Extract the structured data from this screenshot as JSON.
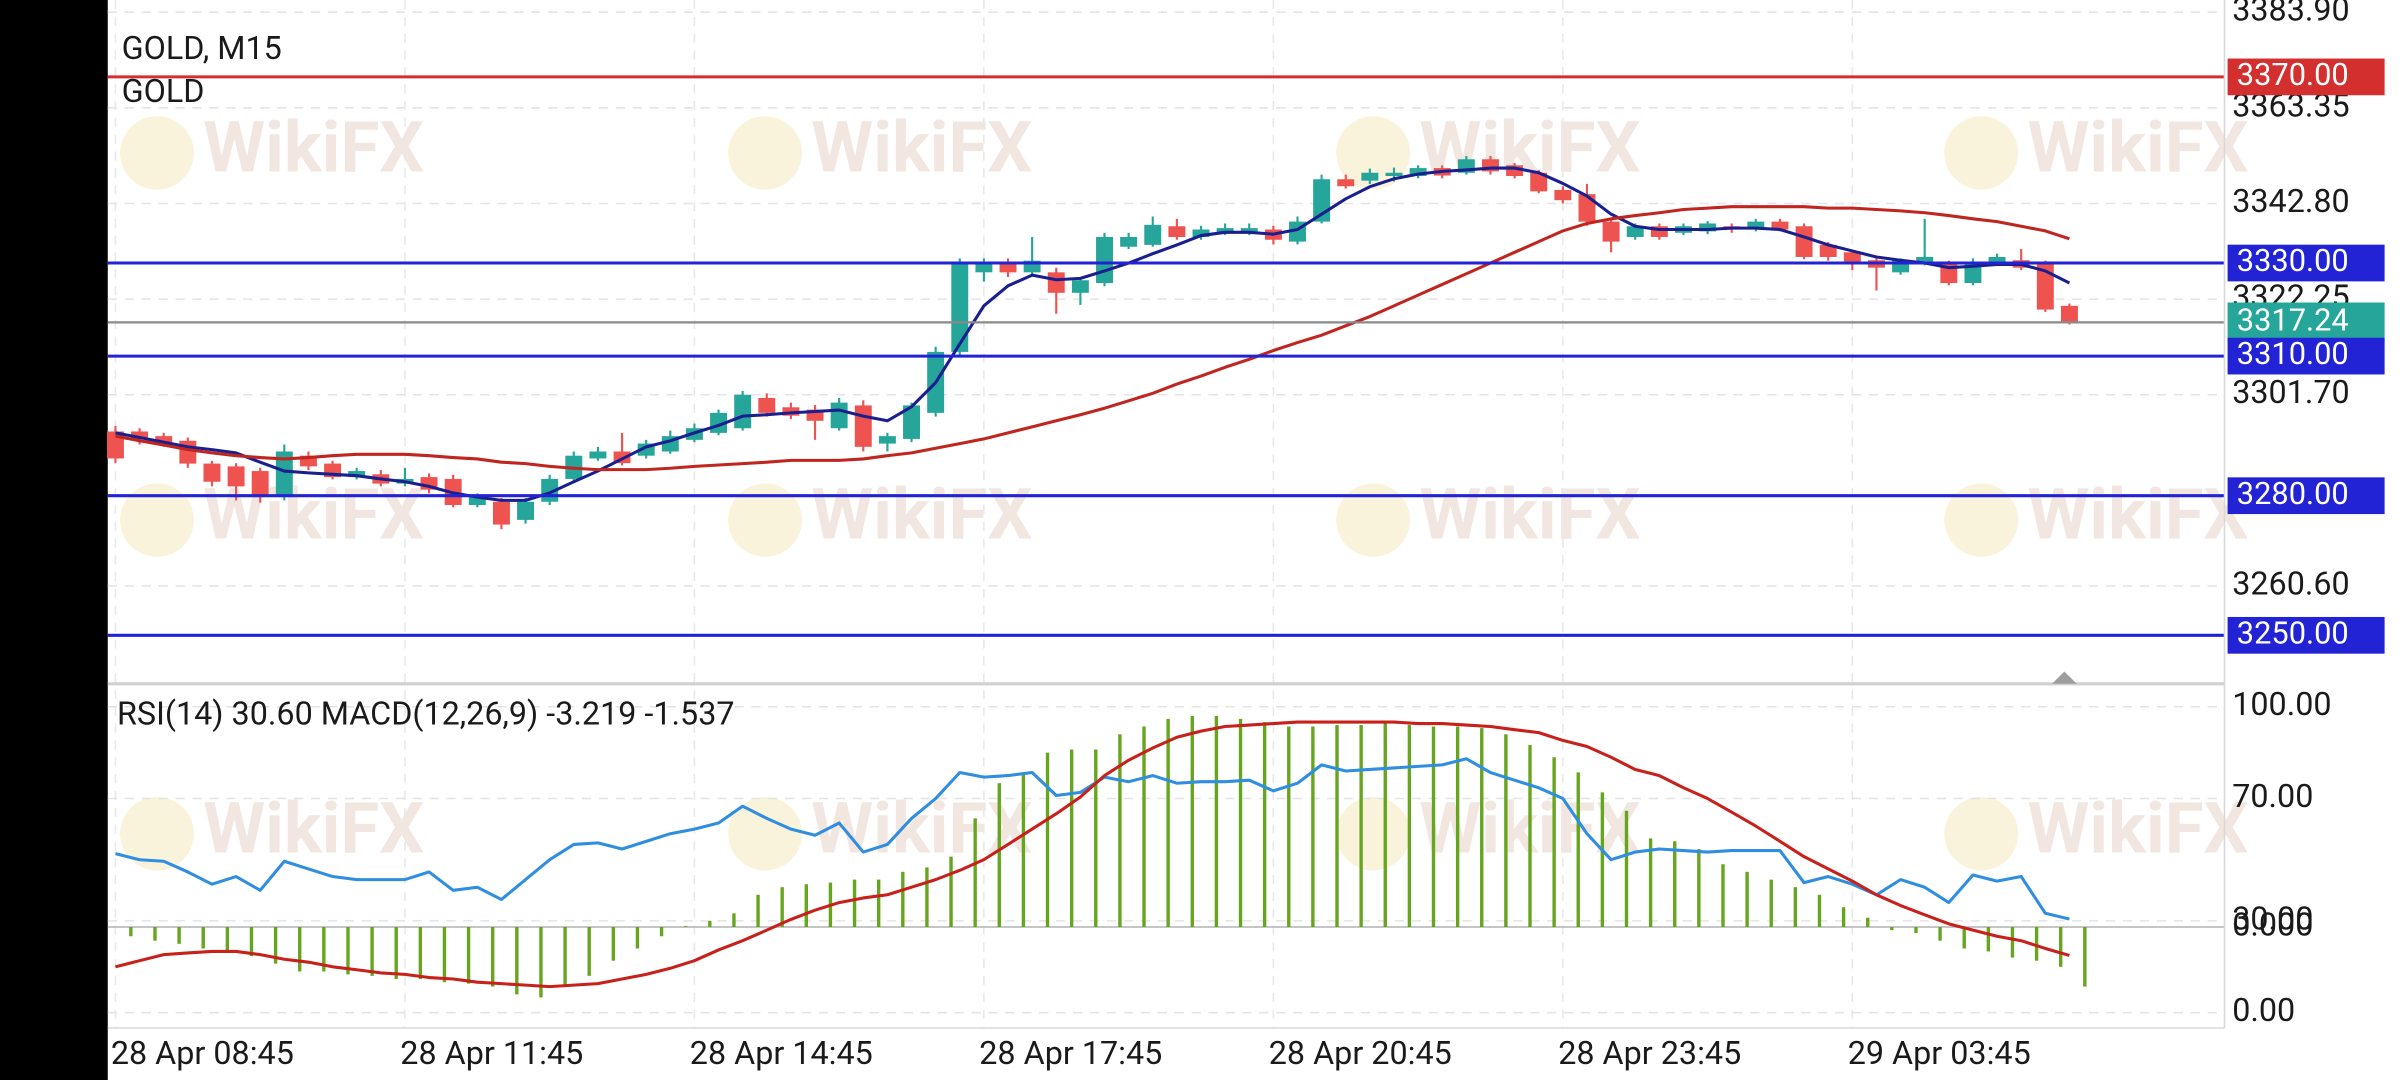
{
  "chart_data": [
    {
      "type": "candlestick",
      "title": "GOLD, M15",
      "subtitle": "GOLD",
      "categories": [
        "28 Apr 08:45",
        null,
        null,
        null,
        null,
        null,
        null,
        null,
        null,
        null,
        null,
        null,
        "28 Apr 11:45",
        null,
        null,
        null,
        null,
        null,
        null,
        null,
        null,
        null,
        null,
        null,
        "28 Apr 14:45",
        null,
        null,
        null,
        null,
        null,
        null,
        null,
        null,
        null,
        null,
        null,
        "28 Apr 17:45",
        null,
        null,
        null,
        null,
        null,
        null,
        null,
        null,
        null,
        null,
        null,
        "28 Apr 20:45",
        null,
        null,
        null,
        null,
        null,
        null,
        null,
        null,
        null,
        null,
        null,
        "28 Apr 23:45",
        null,
        null,
        null,
        null,
        null,
        null,
        null,
        null,
        null,
        null,
        null,
        "29 Apr 03:45",
        null,
        null,
        null,
        null,
        null,
        null,
        null,
        null,
        null
      ],
      "open": [
        3293.8,
        3293.8,
        3292.8,
        3291.8,
        3286.9,
        3286.3,
        3285.3,
        3279.7,
        3288.6,
        3286.9,
        3284,
        3284.6,
        3282.6,
        3284,
        3283.6,
        3278,
        3278.7,
        3274.8,
        3278.7,
        3283.6,
        3288,
        3289.5,
        3288.6,
        3289.5,
        3292,
        3293.5,
        3294.5,
        3301,
        3299,
        3298.5,
        3294.5,
        3299.4,
        3291.2,
        3292.2,
        3297.8,
        3310.9,
        3328,
        3330,
        3328,
        3328,
        3323.6,
        3325.7,
        3333.5,
        3333.9,
        3337.9,
        3335.6,
        3336.5,
        3336.8,
        3337.2,
        3334.6,
        3338.9,
        3348,
        3347.7,
        3348.7,
        3348.7,
        3350.4,
        3349.4,
        3352.3,
        3351,
        3349.4,
        3345.7,
        3344.8,
        3338.9,
        3335.6,
        3337.9,
        3336.5,
        3336.8,
        3337.9,
        3337.2,
        3338.9,
        3337.9,
        3333.9,
        3332.3,
        3330.6,
        3328,
        3330,
        3330,
        3325.7,
        3330,
        3330.6,
        3330,
        3320.8
      ],
      "high": [
        3295,
        3294.5,
        3293.5,
        3292.5,
        3287.5,
        3287,
        3286,
        3291,
        3289.5,
        3287.5,
        3286,
        3285.5,
        3286,
        3284.8,
        3284.5,
        3280.5,
        3279.5,
        3279.5,
        3284.5,
        3289.5,
        3290.5,
        3293.5,
        3292,
        3294,
        3295.5,
        3298.5,
        3302.5,
        3302,
        3300,
        3299.5,
        3301,
        3300.5,
        3293.5,
        3300,
        3312,
        3331,
        3331,
        3331,
        3335.6,
        3329,
        3327,
        3336.5,
        3336.5,
        3340,
        3339.5,
        3338,
        3338.5,
        3338.5,
        3338,
        3340,
        3349,
        3349,
        3350.3,
        3350.5,
        3351,
        3351,
        3353,
        3353,
        3351.5,
        3350,
        3346.5,
        3347,
        3339.5,
        3338.5,
        3338.5,
        3338.5,
        3339,
        3338.5,
        3339.5,
        3339.5,
        3338.5,
        3334.5,
        3332.8,
        3331,
        3331,
        3339.5,
        3330.5,
        3331,
        3332,
        3333,
        3330.5,
        3321.3
      ],
      "low": [
        3287,
        3291,
        3290.5,
        3286,
        3282,
        3279,
        3278.5,
        3279,
        3285.5,
        3283.5,
        3283.5,
        3282,
        3282,
        3280.5,
        3277.5,
        3277.5,
        3272.8,
        3274,
        3278,
        3283,
        3287.5,
        3286.5,
        3288,
        3289,
        3291.5,
        3293,
        3294,
        3297,
        3296.5,
        3292,
        3294,
        3289.5,
        3289.5,
        3291.5,
        3297,
        3310,
        3326,
        3327,
        3327.5,
        3319.1,
        3321,
        3325,
        3333,
        3333.5,
        3335,
        3335,
        3336,
        3336,
        3334,
        3334,
        3338.5,
        3346,
        3347,
        3347.5,
        3348.2,
        3348.2,
        3349,
        3349,
        3348.2,
        3345,
        3342.8,
        3338,
        3332.3,
        3335,
        3335,
        3336,
        3336.2,
        3336.5,
        3336.8,
        3336.8,
        3330.8,
        3330.5,
        3328.5,
        3324.1,
        3327.5,
        3329.5,
        3325.2,
        3325.2,
        3329.5,
        3328.5,
        3319.5,
        3316.8
      ],
      "close": [
        3288,
        3292.2,
        3291.2,
        3286.9,
        3283,
        3282,
        3279.7,
        3289.5,
        3286.3,
        3284,
        3285.3,
        3282.6,
        3283.6,
        3281.3,
        3278,
        3279.7,
        3273.8,
        3278.7,
        3283.6,
        3288.6,
        3289.5,
        3287,
        3291.2,
        3292.8,
        3294.5,
        3297.8,
        3301.7,
        3297.8,
        3297.2,
        3296.1,
        3300,
        3290.5,
        3292.8,
        3299.4,
        3310.9,
        3330,
        3330,
        3328,
        3330.5,
        3323.6,
        3326.3,
        3335.6,
        3335.6,
        3338.2,
        3335.6,
        3337.2,
        3337.5,
        3337.5,
        3335,
        3338.9,
        3348,
        3346.5,
        3349.4,
        3349.4,
        3350.4,
        3348.8,
        3352.3,
        3349.7,
        3348.7,
        3345.4,
        3343.5,
        3338.9,
        3334.6,
        3337.9,
        3335.6,
        3337.9,
        3338.5,
        3337.2,
        3338.9,
        3337.2,
        3331.3,
        3331.3,
        3330,
        3329,
        3330.6,
        3331.3,
        3325.7,
        3330,
        3331.3,
        3329,
        3320,
        3317.24
      ],
      "up_color": "#26a69a",
      "down_color": "#ef5350",
      "series": [
        {
          "color": "#1a1f8f",
          "values": [
            3293.5,
            3292.5,
            3291.5,
            3290.5,
            3289.9,
            3289.2,
            3287.2,
            3285.3,
            3284.9,
            3284.6,
            3284.3,
            3283.6,
            3283,
            3282,
            3280.6,
            3279.7,
            3279,
            3279,
            3280.6,
            3283,
            3285.3,
            3287.9,
            3290.5,
            3291.8,
            3293.5,
            3295.1,
            3297.1,
            3297.4,
            3297.8,
            3298.1,
            3298.4,
            3297.1,
            3296.1,
            3299.1,
            3304.3,
            3312.6,
            3320.8,
            3325.1,
            3327.4,
            3326.4,
            3326.7,
            3328.3,
            3330,
            3332,
            3333.9,
            3335.9,
            3336.6,
            3336.6,
            3336.2,
            3337.2,
            3340.5,
            3343.8,
            3346.4,
            3348.1,
            3349.1,
            3349.7,
            3350,
            3350.4,
            3350.4,
            3349.4,
            3347.1,
            3344.4,
            3340.5,
            3337.9,
            3337.2,
            3337.2,
            3337.2,
            3337.5,
            3337.5,
            3337.2,
            3335.6,
            3333.9,
            3332.6,
            3331.3,
            3330.6,
            3330,
            3329,
            3329.3,
            3329.7,
            3329.7,
            3328.3,
            3325.7
          ]
        },
        {
          "color": "#c0261f",
          "values": [
            3292.8,
            3291.8,
            3290.9,
            3289.9,
            3289.2,
            3288.6,
            3288.2,
            3287.9,
            3288.2,
            3288.6,
            3288.9,
            3288.9,
            3288.9,
            3288.6,
            3288.2,
            3287.9,
            3287.2,
            3286.9,
            3286.3,
            3285.9,
            3285.6,
            3285.6,
            3285.6,
            3285.9,
            3286.3,
            3286.6,
            3286.9,
            3287.2,
            3287.6,
            3287.6,
            3287.6,
            3287.9,
            3288.6,
            3289.2,
            3290.2,
            3291.2,
            3292.2,
            3293.5,
            3294.8,
            3296.1,
            3297.4,
            3298.8,
            3300.4,
            3302,
            3304,
            3305.7,
            3307.6,
            3309.3,
            3311.2,
            3312.9,
            3314.5,
            3316.5,
            3318.5,
            3320.8,
            3323.1,
            3325.4,
            3327.7,
            3330,
            3332.3,
            3334.6,
            3336.9,
            3338.5,
            3339.5,
            3340.2,
            3340.8,
            3341.5,
            3341.8,
            3342.1,
            3342.1,
            3342.1,
            3342.1,
            3341.8,
            3341.8,
            3341.5,
            3341.2,
            3340.8,
            3340.2,
            3339.5,
            3338.9,
            3337.9,
            3336.9,
            3335.2
          ]
        }
      ],
      "ylim": [
        3240.24,
        3386.52
      ],
      "yticks": [
        {
          "value": 3383.9,
          "label": "3383.90"
        },
        {
          "value": 3363.35,
          "label": "3363.35"
        },
        {
          "value": 3342.8,
          "label": "3342.80"
        },
        {
          "value": 3322.25,
          "label": "3322.25"
        },
        {
          "value": 3301.7,
          "label": "3301.70"
        },
        {
          "value": 3260.6,
          "label": "3260.60"
        }
      ],
      "grid": true,
      "levels": [
        {
          "value": 3370,
          "label": "3370.00",
          "color": "#d32f2f"
        },
        {
          "value": 3330,
          "label": "3330.00",
          "color": "#2323d6"
        },
        {
          "value": 3310,
          "label": "3310.00",
          "color": "#2323d6"
        },
        {
          "value": 3280,
          "label": "3280.00",
          "color": "#2323d6"
        },
        {
          "value": 3250,
          "label": "3250.00",
          "color": "#2323d6"
        }
      ],
      "last_price": {
        "value": 3317.24,
        "label": "3317.24",
        "color": "#26a69a"
      },
      "watermark": "WikiFX"
    },
    {
      "type": "indicator",
      "title": "RSI(14) 30.60 MACD(12,26,9) -3.219 -1.537",
      "series": [
        {
          "type": "line",
          "color": "#2f8ee0",
          "values": [
            52,
            50,
            49.5,
            46,
            42,
            44.5,
            40,
            49.5,
            47,
            44.5,
            43.5,
            43.5,
            43.5,
            46,
            40,
            41,
            37,
            43.5,
            50,
            55,
            55.5,
            53.5,
            56,
            58.5,
            60,
            62,
            67.5,
            63.5,
            60,
            58,
            62,
            52.5,
            55,
            63.5,
            70,
            78.5,
            77,
            77.5,
            78.5,
            71,
            72,
            77,
            75.5,
            77.5,
            75,
            75.5,
            75.5,
            76,
            72.5,
            75,
            81,
            79,
            79.5,
            80,
            80.5,
            81,
            83,
            78.5,
            76,
            73.5,
            70,
            58.5,
            50,
            52.5,
            53.5,
            53,
            52.5,
            53,
            53,
            53,
            42.5,
            44.5,
            42,
            38.5,
            43.5,
            41,
            36,
            45,
            43,
            44.5,
            32.5,
            30.6
          ]
        },
        {
          "type": "bar",
          "axis": "y2",
          "color": "#66a61e",
          "values": [
            -0.5,
            -0.74,
            -0.91,
            -1.16,
            -1.32,
            -1.57,
            -1.98,
            -2.4,
            -2.4,
            -2.56,
            -2.64,
            -2.81,
            -2.81,
            -2.98,
            -3.06,
            -3.22,
            -3.64,
            -3.8,
            -3.22,
            -2.64,
            -1.82,
            -1.16,
            -0.5,
            0.05,
            0.33,
            0.74,
            1.74,
            2.15,
            2.31,
            2.4,
            2.56,
            2.56,
            2.98,
            3.22,
            3.8,
            5.87,
            7.77,
            8.35,
            9.42,
            9.59,
            9.59,
            10.41,
            10.83,
            11.24,
            11.4,
            11.4,
            11.24,
            11.07,
            10.83,
            10.83,
            10.91,
            10.91,
            10.99,
            10.91,
            10.83,
            10.83,
            10.74,
            10.41,
            9.83,
            9.17,
            8.35,
            7.27,
            6.28,
            4.79,
            4.63,
            4.21,
            3.39,
            2.98,
            2.56,
            2.15,
            1.74,
            1.07,
            0.5,
            -0.17,
            -0.33,
            -0.74,
            -1.16,
            -1.32,
            -1.65,
            -1.82,
            -2.15,
            -3.219
          ]
        },
        {
          "type": "line",
          "axis": "y2",
          "color": "#c8201a",
          "values": [
            -2.15,
            -1.82,
            -1.49,
            -1.4,
            -1.32,
            -1.32,
            -1.49,
            -1.74,
            -1.9,
            -2.15,
            -2.31,
            -2.48,
            -2.56,
            -2.73,
            -2.81,
            -2.98,
            -3.06,
            -3.14,
            -3.22,
            -3.14,
            -3.06,
            -2.81,
            -2.56,
            -2.23,
            -1.82,
            -1.24,
            -0.74,
            -0.17,
            0.41,
            0.91,
            1.32,
            1.57,
            1.74,
            2.15,
            2.56,
            3.06,
            3.64,
            4.46,
            5.29,
            6.12,
            7.02,
            8.18,
            9.01,
            9.67,
            10.25,
            10.58,
            10.83,
            10.91,
            10.99,
            11.07,
            11.07,
            11.07,
            11.07,
            11.07,
            10.99,
            10.99,
            10.91,
            10.83,
            10.66,
            10.5,
            10.08,
            9.75,
            9.17,
            8.51,
            8.18,
            7.52,
            6.94,
            6.2,
            5.45,
            4.63,
            3.8,
            3.14,
            2.48,
            1.74,
            1.16,
            0.66,
            0.17,
            -0.17,
            -0.5,
            -0.74,
            -1.16,
            -1.537
          ]
        }
      ],
      "ylim": [
        -4,
        106
      ],
      "yticks": [
        {
          "value": 100,
          "label": "100.00"
        },
        {
          "value": 70,
          "label": "70.00"
        },
        {
          "value": 30,
          "label": "30.00"
        },
        {
          "value": 0,
          "label": "0.00"
        }
      ],
      "y2lim": [
        -5.29,
        12.89
      ],
      "y2ticks": [
        {
          "value": 0,
          "label": "0.000"
        }
      ],
      "grid": true,
      "watermark": "WikiFX"
    }
  ]
}
